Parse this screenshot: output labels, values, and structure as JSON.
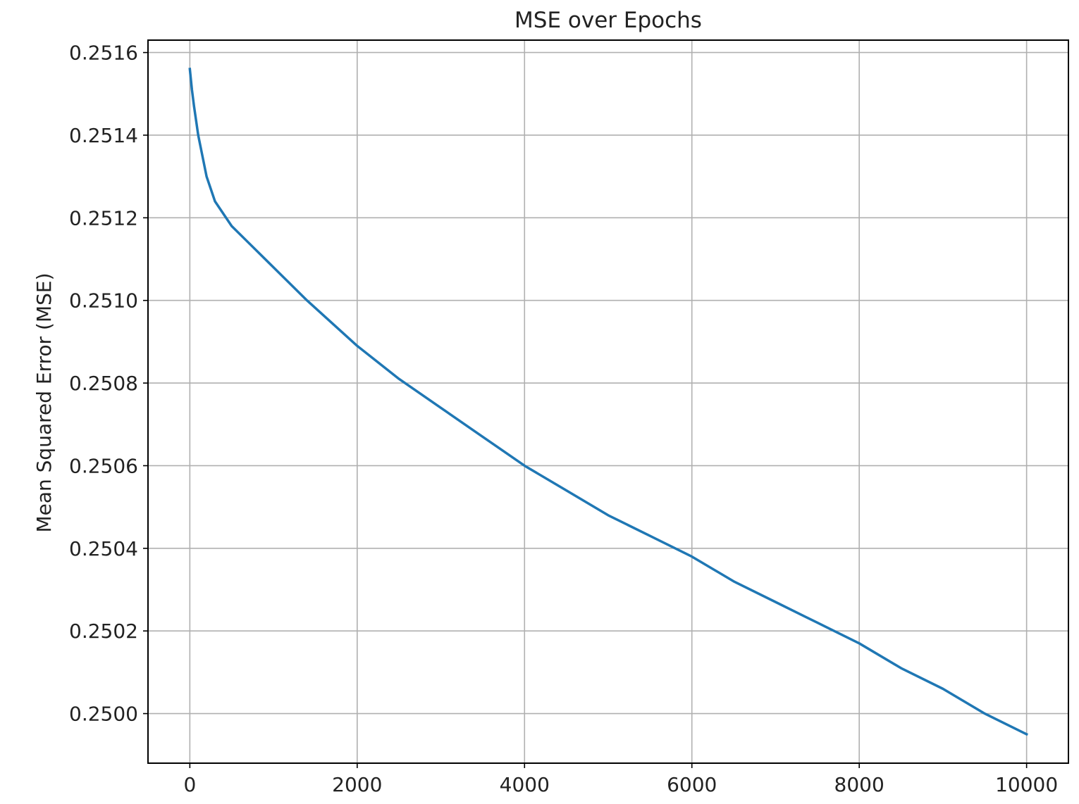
{
  "colors": {
    "line": "#1f77b4",
    "grid": "#b0b0b0",
    "background": "#ffffff"
  },
  "chart_data": {
    "type": "line",
    "title": "MSE over Epochs",
    "xlabel": "",
    "ylabel": "Mean Squared Error (MSE)",
    "xlim": [
      -500,
      10500
    ],
    "ylim": [
      0.24988,
      0.25163
    ],
    "grid": true,
    "legend": "none",
    "xticks": [
      0,
      2000,
      4000,
      6000,
      8000,
      10000
    ],
    "xtick_labels": [
      "0",
      "2000",
      "4000",
      "6000",
      "8000",
      "10000"
    ],
    "yticks": [
      0.25,
      0.2502,
      0.2504,
      0.2506,
      0.2508,
      0.251,
      0.2512,
      0.2514,
      0.2516
    ],
    "ytick_labels": [
      "0.2500",
      "0.2502",
      "0.2504",
      "0.2506",
      "0.2508",
      "0.2510",
      "0.2512",
      "0.2514",
      "0.2516"
    ],
    "series": [
      {
        "name": "MSE",
        "x": [
          0,
          25,
          50,
          100,
          150,
          200,
          300,
          400,
          500,
          700,
          1000,
          1400,
          2000,
          2500,
          3000,
          3500,
          4000,
          4500,
          5000,
          5500,
          6000,
          6500,
          7000,
          7500,
          8000,
          8500,
          9000,
          9500,
          10000
        ],
        "y": [
          0.25156,
          0.25151,
          0.25147,
          0.2514,
          0.25135,
          0.2513,
          0.25124,
          0.25121,
          0.25118,
          0.25114,
          0.25108,
          0.251,
          0.25089,
          0.25081,
          0.25074,
          0.25067,
          0.2506,
          0.25054,
          0.25048,
          0.25043,
          0.25038,
          0.25032,
          0.25027,
          0.25022,
          0.25017,
          0.25011,
          0.25006,
          0.25,
          0.24995
        ]
      }
    ]
  }
}
